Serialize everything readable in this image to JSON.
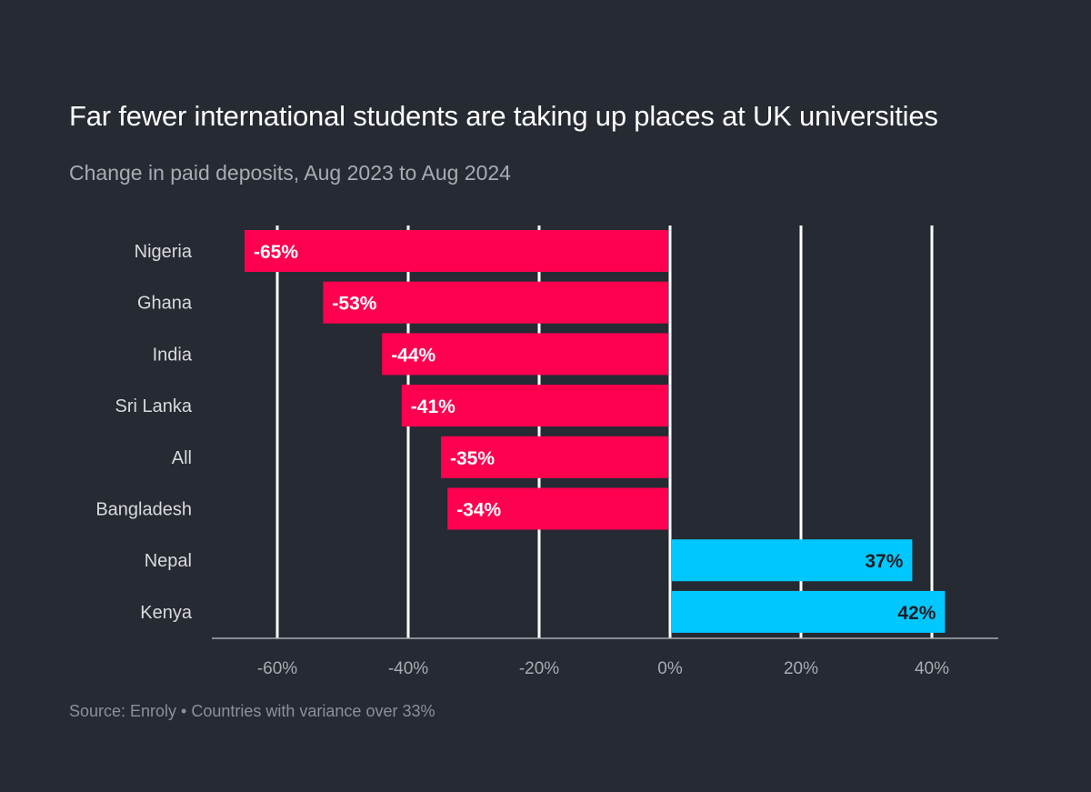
{
  "title": "Far fewer international students are taking up places at UK universities",
  "subtitle": "Change in paid deposits, Aug 2023 to Aug 2024",
  "source": "Source: Enroly • Countries with variance over 33%",
  "colors": {
    "background": "#262a33",
    "negative": "#ff0050",
    "positive": "#00c8ff",
    "gridline": "#ffffff",
    "axis": "#a8abb2"
  },
  "chart_data": {
    "type": "bar",
    "orientation": "horizontal",
    "categories": [
      "Nigeria",
      "Ghana",
      "India",
      "Sri Lanka",
      "All",
      "Bangladesh",
      "Nepal",
      "Kenya"
    ],
    "values": [
      -65,
      -53,
      -44,
      -41,
      -35,
      -34,
      37,
      42
    ],
    "value_labels": [
      "-65%",
      "-53%",
      "-44%",
      "-41%",
      "-35%",
      "-34%",
      "37%",
      "42%"
    ],
    "x_ticks": [
      -60,
      -40,
      -20,
      0,
      20,
      40
    ],
    "x_tick_labels": [
      "-60%",
      "-40%",
      "-20%",
      "0%",
      "20%",
      "40%"
    ],
    "xlim": [
      -70,
      50
    ],
    "grid": true,
    "legend": "none"
  }
}
